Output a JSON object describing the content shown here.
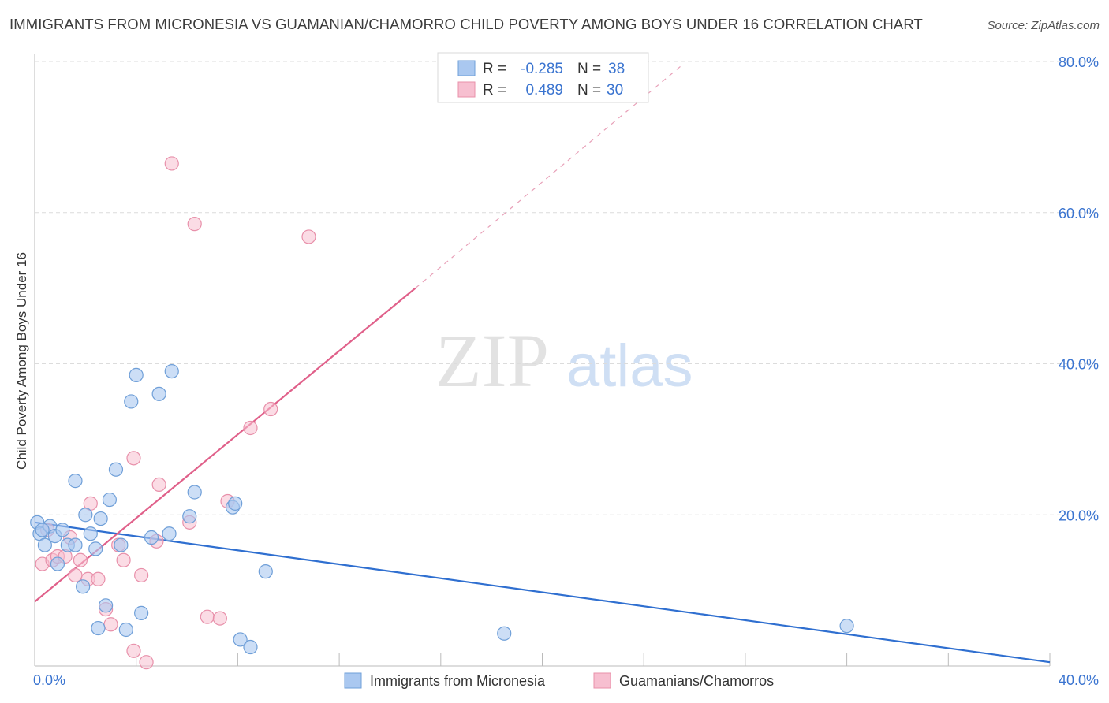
{
  "header": {
    "title": "IMMIGRANTS FROM MICRONESIA VS GUAMANIAN/CHAMORRO CHILD POVERTY AMONG BOYS UNDER 16 CORRELATION CHART",
    "source": "Source: ZipAtlas.com"
  },
  "watermark": {
    "zip": "ZIP",
    "atlas": "atlas"
  },
  "colors": {
    "blue_fill": "#aac8f0",
    "blue_stroke": "#6f9fd8",
    "blue_line": "#2f6fd0",
    "pink_fill": "#f7bfd0",
    "pink_stroke": "#e890aa",
    "pink_line": "#e0608a",
    "value_text": "#3a74d0",
    "grid": "#dcdcdc"
  },
  "legend": {
    "rows": [
      {
        "r_label": "R =",
        "r_value": "-0.285",
        "n_label": "N =",
        "n_value": "38"
      },
      {
        "r_label": "R =",
        "r_value": "0.489",
        "n_label": "N =",
        "n_value": "30"
      }
    ]
  },
  "chart_data": {
    "type": "scatter",
    "title": "IMMIGRANTS FROM MICRONESIA VS GUAMANIAN/CHAMORRO CHILD POVERTY AMONG BOYS UNDER 16 CORRELATION CHART",
    "xlabel": "",
    "ylabel": "Child Poverty Among Boys Under 16",
    "xlim": [
      0,
      40
    ],
    "ylim": [
      0,
      80
    ],
    "x_tick_labels": [
      "0.0%",
      "40.0%"
    ],
    "y_tick_values": [
      20,
      40,
      60,
      80
    ],
    "y_tick_labels": [
      "20.0%",
      "40.0%",
      "60.0%",
      "80.0%"
    ],
    "grid": true,
    "series": [
      {
        "name": "Immigrants from Micronesia",
        "color": "blue",
        "r": -0.285,
        "n": 38,
        "trend": {
          "x": [
            0,
            40
          ],
          "y": [
            19.0,
            0.5
          ]
        },
        "points": [
          [
            0.1,
            19.0
          ],
          [
            0.2,
            17.5
          ],
          [
            0.4,
            16.0
          ],
          [
            0.6,
            18.5
          ],
          [
            0.8,
            17.2
          ],
          [
            0.9,
            13.5
          ],
          [
            1.1,
            18.0
          ],
          [
            1.3,
            16.0
          ],
          [
            1.6,
            16.0
          ],
          [
            1.6,
            24.5
          ],
          [
            1.9,
            10.5
          ],
          [
            2.0,
            20.0
          ],
          [
            2.2,
            17.5
          ],
          [
            2.4,
            15.5
          ],
          [
            2.5,
            5.0
          ],
          [
            2.6,
            19.5
          ],
          [
            2.8,
            8.0
          ],
          [
            2.95,
            22.0
          ],
          [
            3.2,
            26.0
          ],
          [
            3.4,
            16.0
          ],
          [
            3.6,
            4.8
          ],
          [
            3.8,
            35.0
          ],
          [
            4.0,
            38.5
          ],
          [
            4.2,
            7.0
          ],
          [
            4.6,
            17.0
          ],
          [
            4.9,
            36.0
          ],
          [
            5.3,
            17.5
          ],
          [
            5.4,
            39.0
          ],
          [
            6.1,
            19.8
          ],
          [
            6.3,
            23.0
          ],
          [
            7.8,
            21.0
          ],
          [
            7.9,
            21.5
          ],
          [
            8.1,
            3.5
          ],
          [
            8.5,
            2.5
          ],
          [
            9.1,
            12.5
          ],
          [
            18.5,
            4.3
          ],
          [
            32.0,
            5.3
          ],
          [
            0.3,
            18.0
          ]
        ]
      },
      {
        "name": "Guamanians/Chamorros",
        "color": "pink",
        "r": 0.489,
        "n": 30,
        "trend": {
          "x": [
            0,
            15
          ],
          "y": [
            8.5,
            50.0
          ]
        },
        "trend_dashed": {
          "x": [
            15,
            25.5
          ],
          "y": [
            50.0,
            79.5
          ]
        },
        "points": [
          [
            0.3,
            13.5
          ],
          [
            0.5,
            18.0
          ],
          [
            0.7,
            14.0
          ],
          [
            0.9,
            14.5
          ],
          [
            1.2,
            14.5
          ],
          [
            1.4,
            17.0
          ],
          [
            1.6,
            12.0
          ],
          [
            1.8,
            14.0
          ],
          [
            2.1,
            11.5
          ],
          [
            2.2,
            21.5
          ],
          [
            2.5,
            11.5
          ],
          [
            2.8,
            7.5
          ],
          [
            3.0,
            5.5
          ],
          [
            3.3,
            16.0
          ],
          [
            3.5,
            14.0
          ],
          [
            3.9,
            27.5
          ],
          [
            3.9,
            2.0
          ],
          [
            4.2,
            12.0
          ],
          [
            4.4,
            0.5
          ],
          [
            4.8,
            16.5
          ],
          [
            4.9,
            24.0
          ],
          [
            5.4,
            66.5
          ],
          [
            6.1,
            19.0
          ],
          [
            6.3,
            58.5
          ],
          [
            6.8,
            6.5
          ],
          [
            7.3,
            6.3
          ],
          [
            7.6,
            21.8
          ],
          [
            8.5,
            31.5
          ],
          [
            9.3,
            34.0
          ],
          [
            10.8,
            56.8
          ]
        ]
      }
    ],
    "legend_labels": [
      "Immigrants from Micronesia",
      "Guamanians/Chamorros"
    ]
  }
}
